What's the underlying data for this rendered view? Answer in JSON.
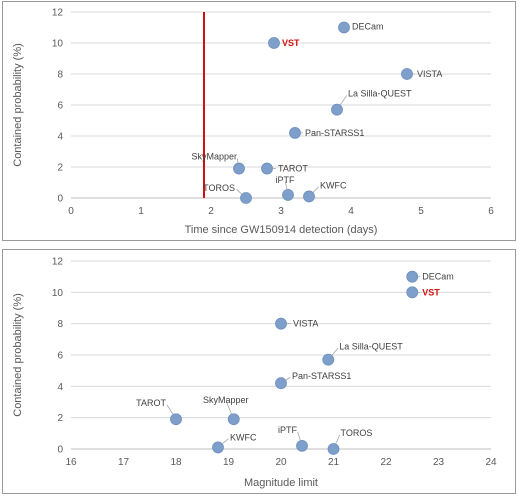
{
  "chart_data": [
    {
      "type": "scatter",
      "title": "",
      "xlabel": "Time since GW150914 detection (days)",
      "ylabel": "Contained probability (%)",
      "xlim": [
        0,
        6
      ],
      "ylim": [
        0,
        12
      ],
      "xticks": [
        0,
        1,
        2,
        3,
        4,
        5,
        6
      ],
      "yticks": [
        0,
        2,
        4,
        6,
        8,
        10,
        12
      ],
      "grid": "horizontal",
      "vline": {
        "x": 1.9,
        "color": "#d01010"
      },
      "points": [
        {
          "label": "DECam",
          "x": 3.9,
          "y": 11.0,
          "highlight": false
        },
        {
          "label": "VST",
          "x": 2.9,
          "y": 10.0,
          "highlight": true
        },
        {
          "label": "VISTA",
          "x": 4.8,
          "y": 8.0,
          "highlight": false
        },
        {
          "label": "La Silla-QUEST",
          "x": 3.8,
          "y": 5.7,
          "highlight": false
        },
        {
          "label": "Pan-STARSS1",
          "x": 3.2,
          "y": 4.2,
          "highlight": false
        },
        {
          "label": "SkyMapper",
          "x": 2.4,
          "y": 1.9,
          "highlight": false
        },
        {
          "label": "TAROT",
          "x": 2.8,
          "y": 1.9,
          "highlight": false
        },
        {
          "label": "TOROS",
          "x": 2.5,
          "y": 0.0,
          "highlight": false
        },
        {
          "label": "iPTF",
          "x": 3.1,
          "y": 0.2,
          "highlight": false
        },
        {
          "label": "KWFC",
          "x": 3.4,
          "y": 0.1,
          "highlight": false
        }
      ]
    },
    {
      "type": "scatter",
      "title": "",
      "xlabel": "Magnitude limit",
      "ylabel": "Contained probability (%)",
      "xlim": [
        16,
        24
      ],
      "ylim": [
        0,
        12
      ],
      "xticks": [
        16,
        17,
        18,
        19,
        20,
        21,
        22,
        23,
        24
      ],
      "yticks": [
        0,
        2,
        4,
        6,
        8,
        10,
        12
      ],
      "grid": "horizontal",
      "points": [
        {
          "label": "DECam",
          "x": 22.5,
          "y": 11.0,
          "highlight": false
        },
        {
          "label": "VST",
          "x": 22.5,
          "y": 10.0,
          "highlight": true
        },
        {
          "label": "VISTA",
          "x": 20.0,
          "y": 8.0,
          "highlight": false
        },
        {
          "label": "La Silla-QUEST",
          "x": 20.9,
          "y": 5.7,
          "highlight": false
        },
        {
          "label": "Pan-STARSS1",
          "x": 20.0,
          "y": 4.2,
          "highlight": false
        },
        {
          "label": "TAROT",
          "x": 18.0,
          "y": 1.9,
          "highlight": false
        },
        {
          "label": "SkyMapper",
          "x": 19.1,
          "y": 1.9,
          "highlight": false
        },
        {
          "label": "KWFC",
          "x": 18.8,
          "y": 0.1,
          "highlight": false
        },
        {
          "label": "iPTF",
          "x": 20.4,
          "y": 0.2,
          "highlight": false
        },
        {
          "label": "TOROS",
          "x": 21.0,
          "y": 0.0,
          "highlight": false
        }
      ]
    }
  ]
}
